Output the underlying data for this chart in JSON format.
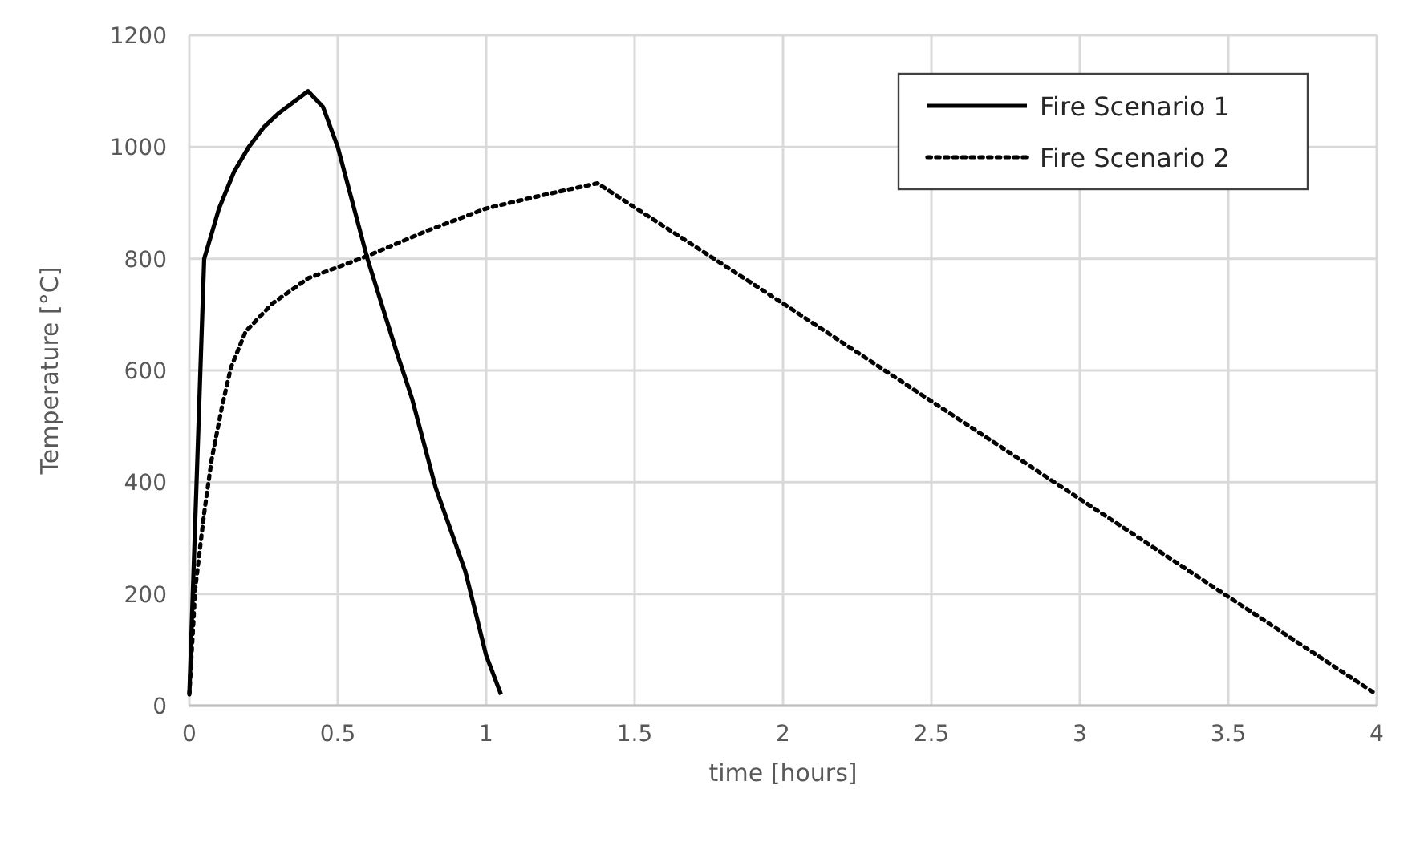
{
  "chart_data": {
    "type": "line",
    "xlabel": "time [hours]",
    "ylabel": "Temperature [°C]",
    "xlim": [
      0,
      4
    ],
    "xticks": [
      0,
      0.5,
      1,
      1.5,
      2,
      2.5,
      3,
      3.5,
      4
    ],
    "ylim": [
      0,
      1200
    ],
    "yticks": [
      0,
      200,
      400,
      600,
      800,
      1000,
      1200
    ],
    "grid": true,
    "legend": "top right",
    "marker": "none",
    "series": [
      {
        "name": "Fire Scenario 1",
        "color": "#000000",
        "line_style": "solid",
        "x": [
          0,
          0.05,
          0.1,
          0.15,
          0.2,
          0.25,
          0.3,
          0.4,
          0.45,
          0.5,
          0.6,
          0.7,
          0.75,
          0.83,
          0.93,
          1,
          1.05
        ],
        "values": [
          20,
          800,
          890,
          955,
          1000,
          1035,
          1060,
          1100,
          1072,
          1000,
          800,
          630,
          550,
          390,
          240,
          90,
          20
        ]
      },
      {
        "name": "Fire Scenario 2",
        "color": "#000000",
        "line_style": "dotted",
        "x": [
          0,
          0.02,
          0.05,
          0.075,
          0.11,
          0.14,
          0.19,
          0.28,
          0.4,
          0.6,
          0.8,
          1,
          1.2,
          1.375,
          2,
          2.5,
          3,
          3.5,
          4
        ],
        "values": [
          20,
          210,
          345,
          440,
          535,
          605,
          670,
          720,
          765,
          805,
          850,
          890,
          915,
          935,
          720,
          545,
          370,
          195,
          20
        ]
      }
    ]
  }
}
